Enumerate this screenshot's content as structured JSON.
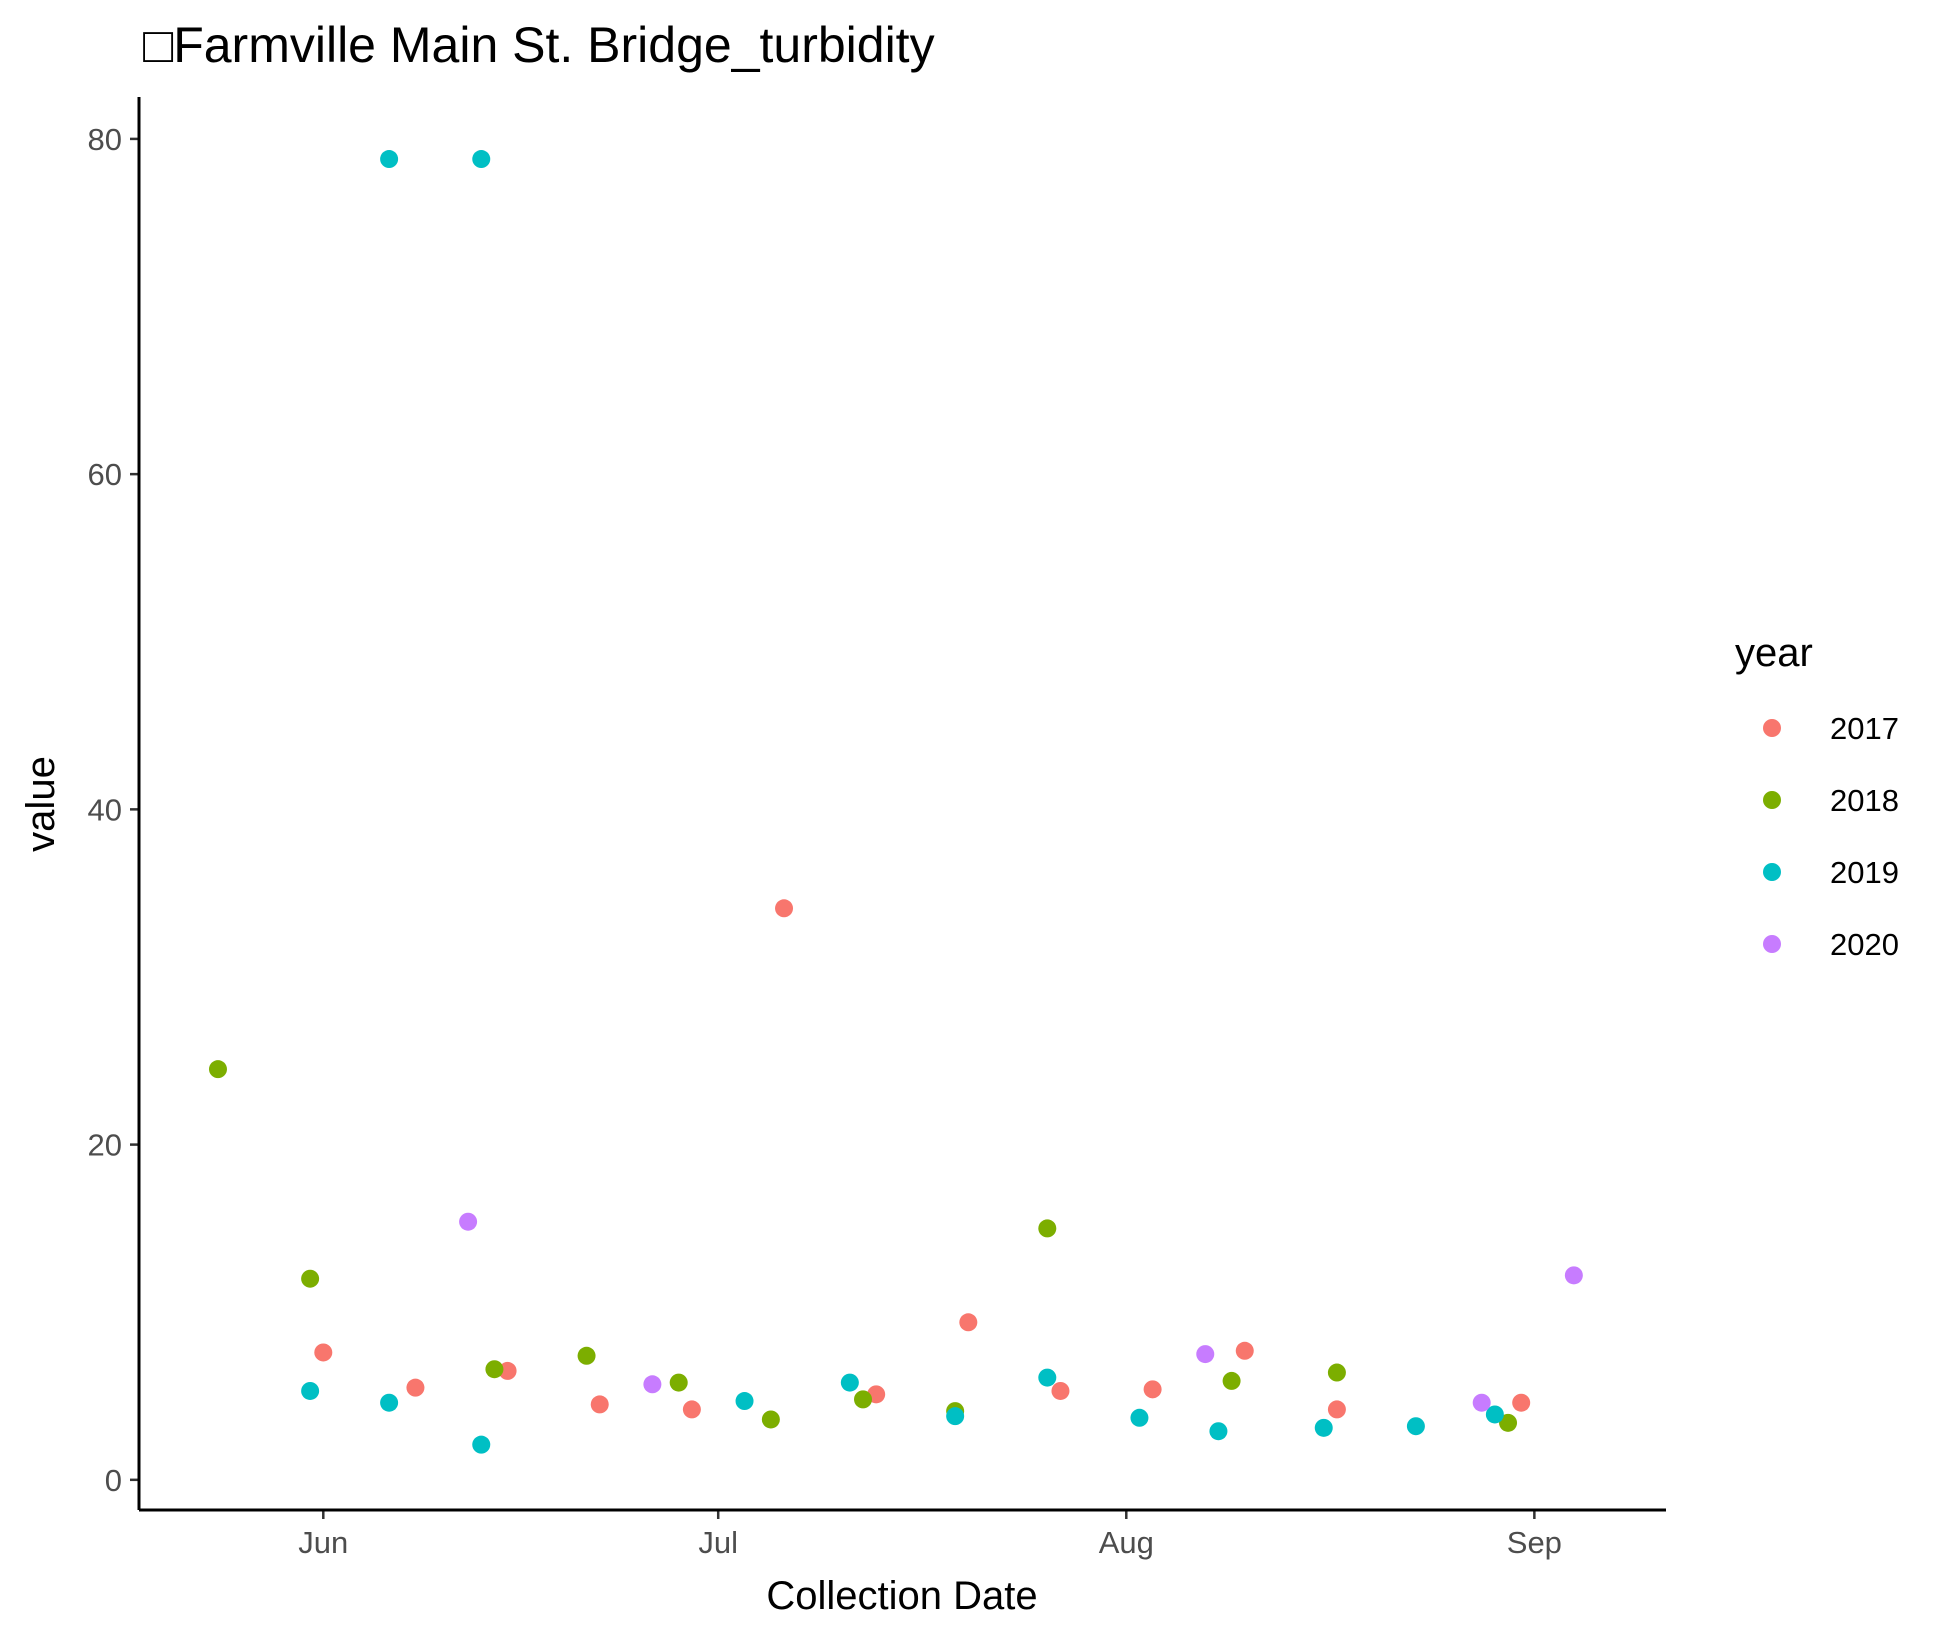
{
  "chart_data": {
    "type": "scatter",
    "title": "□Farmville Main St. Bridge_turbidity",
    "xlabel": "Collection Date",
    "ylabel": "value",
    "x_ticks": [
      {
        "date": "06-01",
        "label": "Jun"
      },
      {
        "date": "07-01",
        "label": "Jul"
      },
      {
        "date": "08-01",
        "label": "Aug"
      },
      {
        "date": "09-01",
        "label": "Sep"
      }
    ],
    "y_ticks": [
      0,
      20,
      40,
      60,
      80
    ],
    "xlim": [
      "05-18",
      "09-11"
    ],
    "ylim": [
      -1.8,
      82.5
    ],
    "grid": false,
    "legend": {
      "title": "year",
      "placement": "right",
      "entries": [
        {
          "label": "2017",
          "color": "#F8766D"
        },
        {
          "label": "2018",
          "color": "#7CAE00"
        },
        {
          "label": "2019",
          "color": "#00BFC4"
        },
        {
          "label": "2020",
          "color": "#C77CFF"
        }
      ]
    },
    "series": [
      {
        "name": "2017",
        "color": "#F8766D",
        "points": [
          {
            "x": "06-01",
            "y": 7.6
          },
          {
            "x": "06-08",
            "y": 5.5
          },
          {
            "x": "06-15",
            "y": 6.5
          },
          {
            "x": "06-22",
            "y": 4.5
          },
          {
            "x": "06-29",
            "y": 4.2
          },
          {
            "x": "07-06",
            "y": 34.1
          },
          {
            "x": "07-13",
            "y": 5.1
          },
          {
            "x": "07-20",
            "y": 9.4
          },
          {
            "x": "07-27",
            "y": 5.3
          },
          {
            "x": "08-03",
            "y": 5.4
          },
          {
            "x": "08-10",
            "y": 7.7
          },
          {
            "x": "08-17",
            "y": 4.2
          },
          {
            "x": "08-31",
            "y": 4.6
          }
        ]
      },
      {
        "name": "2018",
        "color": "#7CAE00",
        "points": [
          {
            "x": "05-24",
            "y": 24.5
          },
          {
            "x": "05-31",
            "y": 12.0
          },
          {
            "x": "06-14",
            "y": 6.6
          },
          {
            "x": "06-21",
            "y": 7.4
          },
          {
            "x": "06-28",
            "y": 5.8
          },
          {
            "x": "07-05",
            "y": 3.6
          },
          {
            "x": "07-12",
            "y": 4.8
          },
          {
            "x": "07-19",
            "y": 4.1
          },
          {
            "x": "07-26",
            "y": 15.0
          },
          {
            "x": "08-09",
            "y": 5.9
          },
          {
            "x": "08-17",
            "y": 6.4
          },
          {
            "x": "08-30",
            "y": 3.4
          }
        ]
      },
      {
        "name": "2019",
        "color": "#00BFC4",
        "points": [
          {
            "x": "05-31",
            "y": 5.3
          },
          {
            "x": "06-06",
            "y": 4.6
          },
          {
            "x": "06-06",
            "y": 78.8
          },
          {
            "x": "06-13",
            "y": 2.1
          },
          {
            "x": "06-13",
            "y": 78.8
          },
          {
            "x": "07-03",
            "y": 4.7
          },
          {
            "x": "07-11",
            "y": 5.8
          },
          {
            "x": "07-19",
            "y": 3.8
          },
          {
            "x": "07-26",
            "y": 6.1
          },
          {
            "x": "08-02",
            "y": 3.7
          },
          {
            "x": "08-08",
            "y": 2.9
          },
          {
            "x": "08-16",
            "y": 3.1
          },
          {
            "x": "08-23",
            "y": 3.2
          },
          {
            "x": "08-29",
            "y": 3.9
          }
        ]
      },
      {
        "name": "2020",
        "color": "#C77CFF",
        "points": [
          {
            "x": "06-12",
            "y": 15.4
          },
          {
            "x": "06-26",
            "y": 5.7
          },
          {
            "x": "08-07",
            "y": 7.5
          },
          {
            "x": "08-28",
            "y": 4.6
          },
          {
            "x": "09-04",
            "y": 12.2
          }
        ]
      }
    ]
  }
}
